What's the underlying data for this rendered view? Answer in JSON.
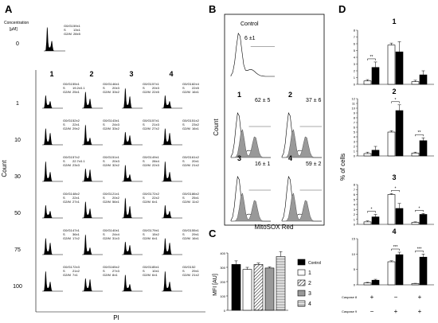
{
  "panel_labels": {
    "a": "A",
    "b": "B",
    "c": "C",
    "d": "D"
  },
  "panel_a": {
    "conc_header": "Concentration",
    "conc_unit": "[µM]",
    "col_numbers": [
      "1",
      "2",
      "3",
      "4"
    ],
    "concentrations": [
      "0",
      "1",
      "10",
      "30",
      "50",
      "75",
      "100"
    ],
    "ylabel": "Count",
    "xlabel": "PI",
    "row_labels": [
      "G0/G1",
      "S",
      "G2/M"
    ],
    "control_stats": [
      "59±1",
      "13±1",
      "28±5"
    ],
    "stats": [
      [
        [
          "55±1",
          "19.2±0.1",
          "25±1"
        ],
        [
          "46±1",
          "20±3",
          "33±2"
        ],
        [
          "57±1",
          "20±3",
          "22±5"
        ],
        [
          "82±4",
          "22±5",
          "16±1"
        ]
      ],
      [
        [
          "52±2",
          "22±1",
          "29±2"
        ],
        [
          "43±1",
          "24±3",
          "33±2"
        ],
        [
          "57±1",
          "21±3",
          "27±2"
        ],
        [
          "51±2",
          "23±2",
          "16±1"
        ]
      ],
      [
        [
          "57±2",
          "22.7±0.1",
          "23±3"
        ],
        [
          "51±1",
          "20±3",
          "32±2"
        ],
        [
          "49±1",
          "28±4",
          "22±3"
        ],
        [
          "61±2",
          "20±1",
          "21±2"
        ]
      ],
      [
        [
          "48±2",
          "22±1",
          "27±1"
        ],
        [
          "21±1",
          "20±2",
          "56±1"
        ],
        [
          "72±2",
          "22±2",
          "6±1"
        ],
        [
          "86±2",
          "25±1",
          "11±2"
        ]
      ],
      [
        [
          "47±1",
          "36±1",
          "17±2"
        ],
        [
          "40±1",
          "24±4",
          "31±3"
        ],
        [
          "79±1",
          "15±2",
          "6±1"
        ],
        [
          "55±1",
          "29±1",
          "16±1"
        ]
      ],
      [
        [
          "72±3",
          "21±2",
          "7±1"
        ],
        [
          "65±2",
          "27±3",
          "8±1"
        ],
        [
          "85±1",
          "10±1",
          "6±1"
        ],
        [
          "52",
          "29±1",
          "21±2"
        ]
      ]
    ]
  },
  "panel_b": {
    "control_label": "Control",
    "control_value": "6 ±1",
    "subplots": [
      {
        "label": "1",
        "value": "62 ± 5"
      },
      {
        "label": "2",
        "value": "37 ± 6"
      },
      {
        "label": "3",
        "value": "16 ± 1"
      },
      {
        "label": "4",
        "value": "59 ± 2"
      }
    ],
    "ylabel": "Count",
    "xlabel": "MitoSOX Red"
  },
  "chart_data": [
    {
      "type": "bar",
      "title": "",
      "xlabel": "",
      "ylabel": "MFI [AU]",
      "categories": [
        "Control",
        "1",
        "2",
        "3",
        "4"
      ],
      "values": [
        320,
        285,
        320,
        295,
        375
      ],
      "errors": [
        25,
        15,
        10,
        8,
        35
      ],
      "ylim": [
        0,
        400
      ],
      "yticks": [
        "0",
        "100",
        "200",
        "300",
        "400"
      ],
      "legend": [
        "Control",
        "1",
        "2",
        "3",
        "4"
      ],
      "legend_position": "right",
      "colors": {
        "control": "#000000",
        "s1": "#ffffff",
        "s2": "#999999",
        "s3": "#ffffff",
        "s4": "#ffffff"
      }
    },
    {
      "type": "bar",
      "title": "1",
      "ylabel": "% of cells",
      "groups": [
        "Caspase 8 +",
        "Caspase 9 +",
        "Caspase 8 + / Caspase 9 +"
      ],
      "series": [
        {
          "name": "white",
          "values": [
            0.5,
            5.8,
            0.4
          ]
        },
        {
          "name": "black",
          "values": [
            2.5,
            4.8,
            1.4
          ]
        }
      ],
      "errors": [
        [
          0.2,
          0.3,
          0.2
        ],
        [
          0.8,
          1.5,
          0.6
        ]
      ],
      "ylim": [
        0,
        8
      ],
      "yticks": [
        "0",
        "1",
        "2",
        "3",
        "4",
        "5",
        "6",
        "7",
        "8"
      ],
      "significance": [
        "**",
        "",
        ""
      ]
    },
    {
      "type": "bar",
      "title": "2",
      "ylabel": "% of cells",
      "groups": [
        "Caspase 8 +",
        "Caspase 9 +",
        "Caspase 8 + / Caspase 9 +"
      ],
      "series": [
        {
          "name": "white",
          "values": [
            0.5,
            5.0,
            0.6
          ]
        },
        {
          "name": "black",
          "values": [
            1.2,
            9.5,
            3.2
          ]
        }
      ],
      "errors": [
        [
          0.3,
          0.3,
          0.2
        ],
        [
          0.8,
          1.2,
          0.6
        ]
      ],
      "ylim": [
        0,
        12
      ],
      "yticks": [
        "0",
        "1",
        "2",
        "3",
        "4",
        "5",
        "6",
        "7",
        "8",
        "9",
        "10",
        "11",
        "12"
      ],
      "significance": [
        "",
        "*",
        "**"
      ]
    },
    {
      "type": "bar",
      "title": "3",
      "ylabel": "% of cells",
      "groups": [
        "Caspase 8 +",
        "Caspase 9 +",
        "Caspase 8 + / Caspase 9 +"
      ],
      "series": [
        {
          "name": "white",
          "values": [
            0.5,
            6.0,
            0.4
          ]
        },
        {
          "name": "black",
          "values": [
            1.5,
            3.2,
            2.0
          ]
        }
      ],
      "errors": [
        [
          0.2,
          0.2,
          0.1
        ],
        [
          0.5,
          1.0,
          0.2
        ]
      ],
      "ylim": [
        0,
        8
      ],
      "yticks": [
        "0",
        "1",
        "2",
        "3",
        "4",
        "5",
        "6",
        "7",
        "8"
      ],
      "significance": [
        "*",
        "*",
        "*"
      ]
    },
    {
      "type": "bar",
      "title": "4",
      "ylabel": "% of cells",
      "groups": [
        "Caspase 8 +",
        "Caspase 9 +",
        "Caspase 8 + / Caspase 9 +"
      ],
      "series": [
        {
          "name": "white",
          "values": [
            0.6,
            7.5,
            0.4
          ]
        },
        {
          "name": "black",
          "values": [
            1.5,
            9.8,
            9.0
          ]
        }
      ],
      "errors": [
        [
          0.2,
          0.3,
          0.1
        ],
        [
          0.3,
          0.8,
          1.0
        ]
      ],
      "ylim": [
        0,
        15
      ],
      "yticks": [
        "0",
        "5",
        "10",
        "15"
      ],
      "significance": [
        "",
        "***",
        "***"
      ]
    }
  ],
  "panel_d_footer": {
    "caspase8_label": "Caspase 8",
    "caspase9_label": "Caspase 9",
    "caspase8_marks": [
      "+",
      "−",
      "+"
    ],
    "caspase9_marks": [
      "−",
      "+",
      "+"
    ]
  }
}
